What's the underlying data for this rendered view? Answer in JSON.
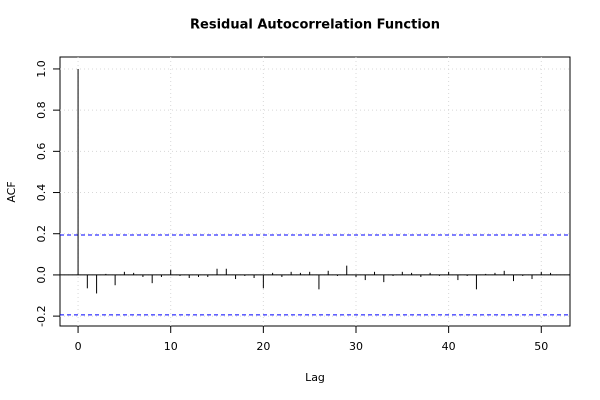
{
  "chart_data": {
    "type": "acf",
    "title": "Residual Autocorrelation Function",
    "xlabel": "Lag",
    "ylabel": "ACF",
    "x": [
      0,
      1,
      2,
      3,
      4,
      5,
      6,
      7,
      8,
      9,
      10,
      11,
      12,
      13,
      14,
      15,
      16,
      17,
      18,
      19,
      20,
      21,
      22,
      23,
      24,
      25,
      26,
      27,
      28,
      29,
      30,
      31,
      32,
      33,
      34,
      35,
      36,
      37,
      38,
      39,
      40,
      41,
      42,
      43,
      44,
      45,
      46,
      47,
      48,
      49,
      50,
      51
    ],
    "values": [
      1.0,
      -0.065,
      -0.09,
      0.005,
      -0.05,
      0.015,
      0.01,
      -0.01,
      -0.04,
      -0.01,
      0.025,
      -0.005,
      -0.015,
      -0.01,
      -0.01,
      0.03,
      0.03,
      -0.02,
      -0.005,
      -0.015,
      -0.065,
      0.01,
      -0.01,
      0.015,
      0.01,
      0.015,
      -0.07,
      0.02,
      -0.005,
      0.045,
      -0.01,
      -0.025,
      0.015,
      -0.035,
      -0.005,
      0.015,
      0.01,
      -0.01,
      0.01,
      -0.005,
      0.015,
      -0.025,
      -0.005,
      -0.07,
      0.005,
      0.01,
      0.02,
      -0.03,
      -0.005,
      -0.02,
      0.015,
      0.01
    ],
    "color": "#000000",
    "conf_limits": [
      0.194,
      -0.194
    ],
    "conf_color": "#0000ff",
    "xlim": [
      -1.95,
      53.1
    ],
    "ylim": [
      -0.248,
      1.058
    ],
    "xticks": [
      0,
      10,
      20,
      30,
      40,
      50
    ],
    "yticks": [
      -0.2,
      {
        "value": 0,
        "label": "0.0"
      },
      0.2,
      0.4,
      0.6,
      0.8,
      {
        "value": 1,
        "label": "1.0"
      }
    ],
    "grid": true
  }
}
